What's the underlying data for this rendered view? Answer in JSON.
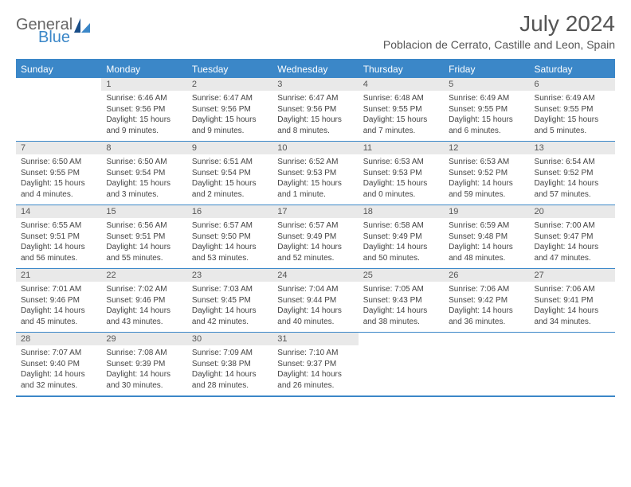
{
  "logo": {
    "part1": "General",
    "part2": "Blue"
  },
  "title": "July 2024",
  "location": "Poblacion de Cerrato, Castille and Leon, Spain",
  "colors": {
    "accent": "#3b87c8",
    "header_bg": "#e9e9e9",
    "text": "#444",
    "title_text": "#555"
  },
  "weekdays": [
    "Sunday",
    "Monday",
    "Tuesday",
    "Wednesday",
    "Thursday",
    "Friday",
    "Saturday"
  ],
  "weeks": [
    [
      null,
      {
        "n": "1",
        "sr": "Sunrise: 6:46 AM",
        "ss": "Sunset: 9:56 PM",
        "d1": "Daylight: 15 hours",
        "d2": "and 9 minutes."
      },
      {
        "n": "2",
        "sr": "Sunrise: 6:47 AM",
        "ss": "Sunset: 9:56 PM",
        "d1": "Daylight: 15 hours",
        "d2": "and 9 minutes."
      },
      {
        "n": "3",
        "sr": "Sunrise: 6:47 AM",
        "ss": "Sunset: 9:56 PM",
        "d1": "Daylight: 15 hours",
        "d2": "and 8 minutes."
      },
      {
        "n": "4",
        "sr": "Sunrise: 6:48 AM",
        "ss": "Sunset: 9:55 PM",
        "d1": "Daylight: 15 hours",
        "d2": "and 7 minutes."
      },
      {
        "n": "5",
        "sr": "Sunrise: 6:49 AM",
        "ss": "Sunset: 9:55 PM",
        "d1": "Daylight: 15 hours",
        "d2": "and 6 minutes."
      },
      {
        "n": "6",
        "sr": "Sunrise: 6:49 AM",
        "ss": "Sunset: 9:55 PM",
        "d1": "Daylight: 15 hours",
        "d2": "and 5 minutes."
      }
    ],
    [
      {
        "n": "7",
        "sr": "Sunrise: 6:50 AM",
        "ss": "Sunset: 9:55 PM",
        "d1": "Daylight: 15 hours",
        "d2": "and 4 minutes."
      },
      {
        "n": "8",
        "sr": "Sunrise: 6:50 AM",
        "ss": "Sunset: 9:54 PM",
        "d1": "Daylight: 15 hours",
        "d2": "and 3 minutes."
      },
      {
        "n": "9",
        "sr": "Sunrise: 6:51 AM",
        "ss": "Sunset: 9:54 PM",
        "d1": "Daylight: 15 hours",
        "d2": "and 2 minutes."
      },
      {
        "n": "10",
        "sr": "Sunrise: 6:52 AM",
        "ss": "Sunset: 9:53 PM",
        "d1": "Daylight: 15 hours",
        "d2": "and 1 minute."
      },
      {
        "n": "11",
        "sr": "Sunrise: 6:53 AM",
        "ss": "Sunset: 9:53 PM",
        "d1": "Daylight: 15 hours",
        "d2": "and 0 minutes."
      },
      {
        "n": "12",
        "sr": "Sunrise: 6:53 AM",
        "ss": "Sunset: 9:52 PM",
        "d1": "Daylight: 14 hours",
        "d2": "and 59 minutes."
      },
      {
        "n": "13",
        "sr": "Sunrise: 6:54 AM",
        "ss": "Sunset: 9:52 PM",
        "d1": "Daylight: 14 hours",
        "d2": "and 57 minutes."
      }
    ],
    [
      {
        "n": "14",
        "sr": "Sunrise: 6:55 AM",
        "ss": "Sunset: 9:51 PM",
        "d1": "Daylight: 14 hours",
        "d2": "and 56 minutes."
      },
      {
        "n": "15",
        "sr": "Sunrise: 6:56 AM",
        "ss": "Sunset: 9:51 PM",
        "d1": "Daylight: 14 hours",
        "d2": "and 55 minutes."
      },
      {
        "n": "16",
        "sr": "Sunrise: 6:57 AM",
        "ss": "Sunset: 9:50 PM",
        "d1": "Daylight: 14 hours",
        "d2": "and 53 minutes."
      },
      {
        "n": "17",
        "sr": "Sunrise: 6:57 AM",
        "ss": "Sunset: 9:49 PM",
        "d1": "Daylight: 14 hours",
        "d2": "and 52 minutes."
      },
      {
        "n": "18",
        "sr": "Sunrise: 6:58 AM",
        "ss": "Sunset: 9:49 PM",
        "d1": "Daylight: 14 hours",
        "d2": "and 50 minutes."
      },
      {
        "n": "19",
        "sr": "Sunrise: 6:59 AM",
        "ss": "Sunset: 9:48 PM",
        "d1": "Daylight: 14 hours",
        "d2": "and 48 minutes."
      },
      {
        "n": "20",
        "sr": "Sunrise: 7:00 AM",
        "ss": "Sunset: 9:47 PM",
        "d1": "Daylight: 14 hours",
        "d2": "and 47 minutes."
      }
    ],
    [
      {
        "n": "21",
        "sr": "Sunrise: 7:01 AM",
        "ss": "Sunset: 9:46 PM",
        "d1": "Daylight: 14 hours",
        "d2": "and 45 minutes."
      },
      {
        "n": "22",
        "sr": "Sunrise: 7:02 AM",
        "ss": "Sunset: 9:46 PM",
        "d1": "Daylight: 14 hours",
        "d2": "and 43 minutes."
      },
      {
        "n": "23",
        "sr": "Sunrise: 7:03 AM",
        "ss": "Sunset: 9:45 PM",
        "d1": "Daylight: 14 hours",
        "d2": "and 42 minutes."
      },
      {
        "n": "24",
        "sr": "Sunrise: 7:04 AM",
        "ss": "Sunset: 9:44 PM",
        "d1": "Daylight: 14 hours",
        "d2": "and 40 minutes."
      },
      {
        "n": "25",
        "sr": "Sunrise: 7:05 AM",
        "ss": "Sunset: 9:43 PM",
        "d1": "Daylight: 14 hours",
        "d2": "and 38 minutes."
      },
      {
        "n": "26",
        "sr": "Sunrise: 7:06 AM",
        "ss": "Sunset: 9:42 PM",
        "d1": "Daylight: 14 hours",
        "d2": "and 36 minutes."
      },
      {
        "n": "27",
        "sr": "Sunrise: 7:06 AM",
        "ss": "Sunset: 9:41 PM",
        "d1": "Daylight: 14 hours",
        "d2": "and 34 minutes."
      }
    ],
    [
      {
        "n": "28",
        "sr": "Sunrise: 7:07 AM",
        "ss": "Sunset: 9:40 PM",
        "d1": "Daylight: 14 hours",
        "d2": "and 32 minutes."
      },
      {
        "n": "29",
        "sr": "Sunrise: 7:08 AM",
        "ss": "Sunset: 9:39 PM",
        "d1": "Daylight: 14 hours",
        "d2": "and 30 minutes."
      },
      {
        "n": "30",
        "sr": "Sunrise: 7:09 AM",
        "ss": "Sunset: 9:38 PM",
        "d1": "Daylight: 14 hours",
        "d2": "and 28 minutes."
      },
      {
        "n": "31",
        "sr": "Sunrise: 7:10 AM",
        "ss": "Sunset: 9:37 PM",
        "d1": "Daylight: 14 hours",
        "d2": "and 26 minutes."
      },
      null,
      null,
      null
    ]
  ]
}
